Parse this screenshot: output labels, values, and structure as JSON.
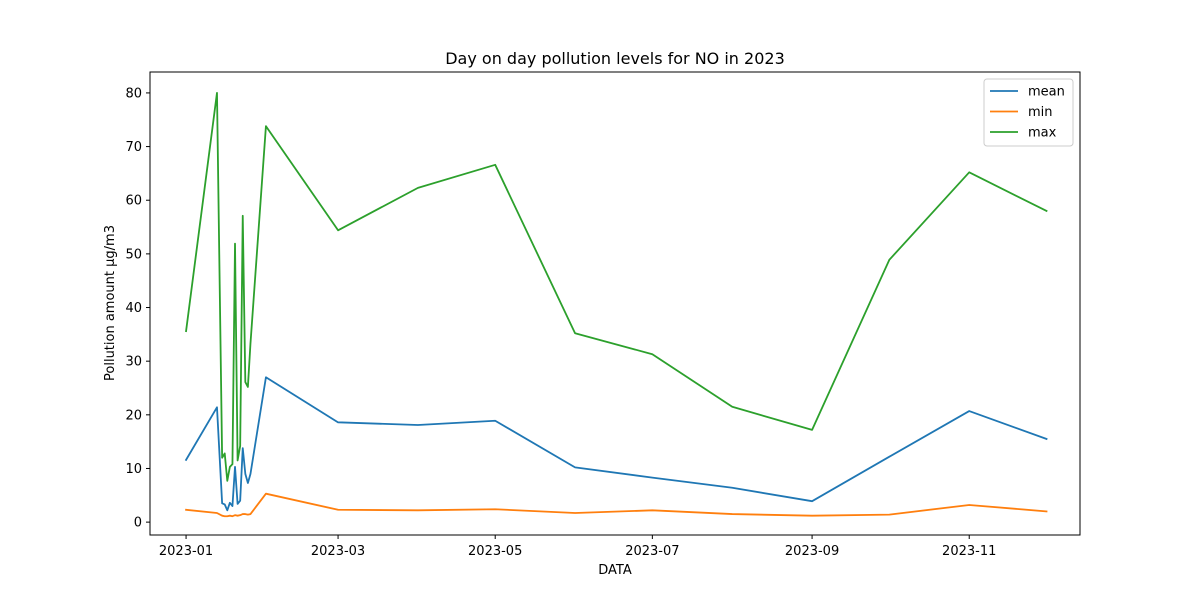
{
  "chart_data": {
    "type": "line",
    "title": "Day on day pollution levels for NO in 2023",
    "xlabel": "DATA",
    "ylabel": "Pollution amount µg/m3",
    "x_tick_labels": [
      "2023-01",
      "2023-03",
      "2023-05",
      "2023-07",
      "2023-09",
      "2023-11"
    ],
    "x_tick_dates": [
      "2023-01-01",
      "2023-03-01",
      "2023-05-01",
      "2023-07-01",
      "2023-09-01",
      "2023-11-01"
    ],
    "y_ticks": [
      0,
      10,
      20,
      30,
      40,
      50,
      60,
      70,
      80
    ],
    "xlim": [
      "2022-12-18",
      "2023-12-14"
    ],
    "ylim": [
      -2.4,
      83.9
    ],
    "grid": false,
    "legend_position": "top-right",
    "series": [
      {
        "name": "mean",
        "color": "#1f77b4",
        "x": [
          "2023-01-01",
          "2023-01-13",
          "2023-01-15",
          "2023-01-16",
          "2023-01-17",
          "2023-01-18",
          "2023-01-19",
          "2023-01-20",
          "2023-01-21",
          "2023-01-22",
          "2023-01-23",
          "2023-01-24",
          "2023-01-25",
          "2023-01-26",
          "2023-02-01",
          "2023-03-01",
          "2023-04-01",
          "2023-05-01",
          "2023-06-01",
          "2023-07-01",
          "2023-08-01",
          "2023-09-01",
          "2023-10-01",
          "2023-11-01",
          "2023-12-01"
        ],
        "y": [
          11.6,
          21.4,
          3.5,
          3.3,
          2.2,
          3.6,
          3.0,
          10.3,
          3.4,
          4.0,
          13.8,
          9.0,
          7.3,
          9.0,
          27.0,
          18.6,
          18.1,
          18.9,
          10.2,
          8.3,
          6.4,
          3.9,
          12.2,
          20.7,
          15.5
        ]
      },
      {
        "name": "min",
        "color": "#ff7f0e",
        "x": [
          "2023-01-01",
          "2023-01-13",
          "2023-01-15",
          "2023-01-16",
          "2023-01-17",
          "2023-01-18",
          "2023-01-19",
          "2023-01-20",
          "2023-01-21",
          "2023-01-22",
          "2023-01-23",
          "2023-01-24",
          "2023-01-25",
          "2023-01-26",
          "2023-02-01",
          "2023-03-01",
          "2023-04-01",
          "2023-05-01",
          "2023-06-01",
          "2023-07-01",
          "2023-08-01",
          "2023-09-01",
          "2023-10-01",
          "2023-11-01",
          "2023-12-01"
        ],
        "y": [
          2.3,
          1.7,
          1.2,
          1.1,
          1.1,
          1.2,
          1.1,
          1.3,
          1.2,
          1.3,
          1.5,
          1.5,
          1.4,
          1.5,
          5.3,
          2.3,
          2.2,
          2.4,
          1.7,
          2.2,
          1.5,
          1.2,
          1.4,
          3.2,
          2.0
        ]
      },
      {
        "name": "max",
        "color": "#2ca02c",
        "x": [
          "2023-01-01",
          "2023-01-13",
          "2023-01-15",
          "2023-01-16",
          "2023-01-17",
          "2023-01-18",
          "2023-01-19",
          "2023-01-20",
          "2023-01-21",
          "2023-01-22",
          "2023-01-23",
          "2023-01-24",
          "2023-01-25",
          "2023-01-26",
          "2023-02-01",
          "2023-03-01",
          "2023-04-01",
          "2023-05-01",
          "2023-06-01",
          "2023-07-01",
          "2023-08-01",
          "2023-09-01",
          "2023-10-01",
          "2023-11-01",
          "2023-12-01"
        ],
        "y": [
          35.6,
          80.0,
          12.0,
          12.8,
          7.7,
          10.3,
          10.8,
          51.9,
          11.5,
          14.2,
          57.1,
          26.1,
          25.2,
          33.3,
          73.8,
          54.4,
          62.3,
          66.6,
          35.2,
          31.3,
          21.5,
          17.2,
          48.9,
          65.2,
          58.0
        ]
      }
    ]
  }
}
